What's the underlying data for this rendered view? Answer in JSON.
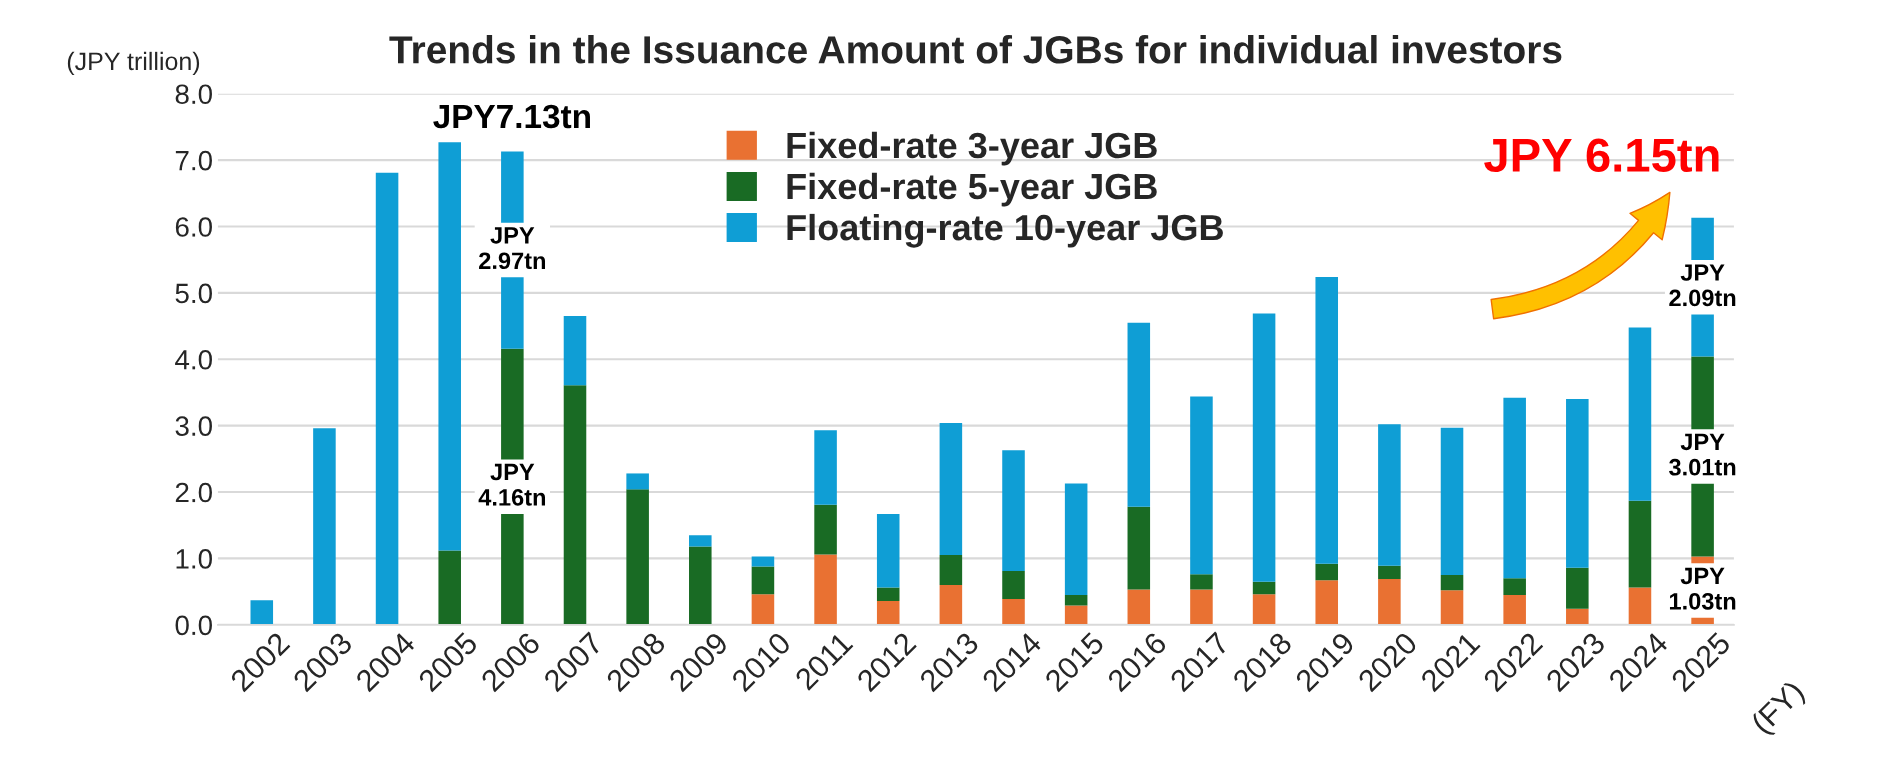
{
  "chart_data": {
    "type": "bar",
    "title": "Trends in the Issuance Amount of JGBs for individual investors",
    "ylabel": "(JPY trillion)",
    "xlabel": "(FY)",
    "categories": [
      "2002",
      "2003",
      "2004",
      "2005",
      "2006",
      "2007",
      "2008",
      "2009",
      "2010",
      "2011",
      "2012",
      "2013",
      "2014",
      "2015",
      "2016",
      "2017",
      "2018",
      "2019",
      "2020",
      "2021",
      "2022",
      "2023",
      "2024",
      "2025"
    ],
    "stacked": true,
    "series": [
      {
        "name": "Fixed-rate 3-year JGB",
        "color": "#e97132",
        "values": [
          null,
          null,
          null,
          null,
          null,
          null,
          null,
          null,
          0.46,
          1.06,
          0.36,
          0.6,
          0.39,
          0.29,
          0.53,
          0.53,
          0.46,
          0.67,
          0.69,
          0.52,
          0.45,
          0.24,
          0.56,
          1.03
        ],
        "value_labels": [
          null,
          null,
          null,
          null,
          null,
          null,
          null,
          null,
          null,
          null,
          null,
          null,
          null,
          null,
          null,
          null,
          null,
          null,
          null,
          null,
          null,
          null,
          null,
          "JPY\n1.03tn"
        ]
      },
      {
        "name": "Fixed-rate 5-year JGB",
        "color": "#196b24",
        "values": [
          null,
          null,
          null,
          1.12,
          4.16,
          3.61,
          2.04,
          1.18,
          0.42,
          0.75,
          0.2,
          0.45,
          0.42,
          0.16,
          1.25,
          0.23,
          0.19,
          0.25,
          0.2,
          0.23,
          0.25,
          0.62,
          1.31,
          3.01
        ],
        "value_labels": [
          null,
          null,
          null,
          null,
          "JPY\n4.16tn",
          null,
          null,
          null,
          null,
          null,
          null,
          null,
          null,
          null,
          null,
          null,
          null,
          null,
          null,
          null,
          null,
          null,
          null,
          "JPY\n3.01tn"
        ]
      },
      {
        "name": "Floating-rate 10-year JGB",
        "color": "#0f9ed5",
        "values": [
          0.37,
          2.96,
          6.81,
          6.15,
          2.97,
          1.04,
          0.24,
          0.17,
          0.15,
          1.12,
          1.11,
          1.99,
          1.82,
          1.68,
          2.77,
          2.68,
          4.04,
          4.32,
          2.13,
          2.22,
          2.72,
          2.54,
          2.61,
          2.09
        ],
        "value_labels": [
          null,
          null,
          null,
          null,
          "JPY\n2.97tn",
          null,
          null,
          null,
          null,
          null,
          null,
          null,
          null,
          null,
          null,
          null,
          null,
          null,
          null,
          null,
          null,
          null,
          null,
          "JPY\n2.09tn"
        ]
      }
    ],
    "totals": [
      null,
      null,
      null,
      null,
      "JPY7.13tn",
      null,
      null,
      null,
      null,
      null,
      null,
      null,
      null,
      null,
      null,
      null,
      null,
      null,
      null,
      null,
      null,
      null,
      null,
      "JPY 6.15tn"
    ],
    "ylim": [
      0,
      8
    ],
    "yticks": [
      {
        "value": 0,
        "label": "0.0"
      },
      {
        "value": 1,
        "label": "1.0"
      },
      {
        "value": 2,
        "label": "2.0"
      },
      {
        "value": 3,
        "label": "3.0"
      },
      {
        "value": 4,
        "label": "4.0"
      },
      {
        "value": 5,
        "label": "5.0"
      },
      {
        "value": 6,
        "label": "6.0"
      },
      {
        "value": 7,
        "label": "7.0"
      },
      {
        "value": 8,
        "label": "8.0"
      }
    ],
    "grid": "y",
    "legend": "top"
  }
}
